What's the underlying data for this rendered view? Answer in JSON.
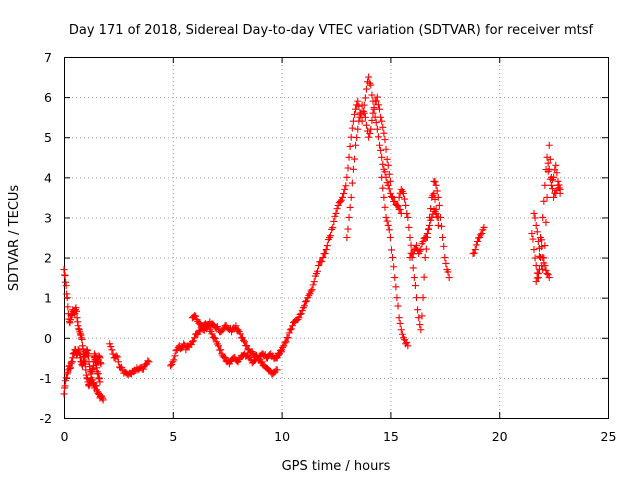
{
  "chart_data": {
    "type": "scatter",
    "title": "Day 171 of 2018, Sidereal Day-to-day VTEC variation (SDTVAR) for receiver mtsf",
    "xlabel": "GPS time / hours",
    "ylabel": "SDTVAR / TECUs",
    "xlim": [
      0,
      25
    ],
    "ylim": [
      -2,
      7
    ],
    "xticks": [
      "0",
      "5",
      "10",
      "15",
      "20",
      "25"
    ],
    "yticks": [
      "-2",
      "-1",
      "0",
      "1",
      "2",
      "3",
      "4",
      "5",
      "6",
      "7"
    ],
    "grid": true,
    "marker": "plus",
    "color": "#ff0000",
    "series": [
      {
        "name": "trace-1",
        "x": [
          0.0,
          0.05,
          0.1,
          0.15,
          0.2,
          0.25,
          0.3,
          0.35,
          0.4,
          0.45,
          0.5,
          0.55,
          0.6,
          0.65,
          0.7,
          0.75,
          0.8,
          0.85,
          0.9,
          0.95,
          1.0,
          1.05,
          1.1,
          1.15,
          1.2,
          1.25,
          1.3,
          1.35,
          1.4,
          1.45,
          1.5,
          1.55,
          1.6,
          1.65,
          1.7,
          1.75,
          1.8
        ],
        "y": [
          1.7,
          1.55,
          1.3,
          1.0,
          0.6,
          0.4,
          0.45,
          0.55,
          0.7,
          0.65,
          0.6,
          0.75,
          0.5,
          0.3,
          0.2,
          0.1,
          0.0,
          -0.2,
          -0.4,
          -0.6,
          -0.8,
          -1.0,
          -1.1,
          -1.2,
          -1.1,
          -1.0,
          -1.05,
          -1.15,
          -1.25,
          -1.2,
          -1.3,
          -1.35,
          -1.4,
          -1.5,
          -1.45,
          -1.5,
          -1.55
        ]
      },
      {
        "name": "trace-2",
        "x": [
          0.0,
          0.05,
          0.1,
          0.15,
          0.2,
          0.25,
          0.3,
          0.35,
          0.4,
          0.45,
          0.5,
          0.55,
          0.6,
          0.65,
          0.7,
          0.75,
          0.8,
          0.85,
          0.9,
          0.95,
          1.0,
          1.05,
          1.1,
          1.15,
          1.2,
          1.25,
          1.3,
          1.35,
          1.4,
          1.45,
          1.5,
          1.55,
          1.6,
          1.65
        ],
        "y": [
          -1.4,
          -1.2,
          -1.0,
          -0.9,
          -0.8,
          -0.7,
          -0.75,
          -0.6,
          -0.5,
          -0.4,
          -0.3,
          -0.35,
          -0.4,
          -0.3,
          -0.35,
          -0.5,
          -0.6,
          -0.7,
          -0.6,
          -0.5,
          -0.35,
          -0.3,
          -0.4,
          -0.6,
          -0.8,
          -0.9,
          -0.8,
          -0.7,
          -0.5,
          -0.6,
          -0.75,
          -0.9,
          -1.0,
          -1.1
        ]
      },
      {
        "name": "trace-3",
        "x": [
          1.4,
          1.45,
          1.5,
          1.55,
          1.6,
          1.65,
          1.7
        ],
        "y": [
          -0.4,
          -0.45,
          -0.55,
          -0.6,
          -0.45,
          -0.5,
          -0.65
        ]
      },
      {
        "name": "trace-4",
        "x": [
          2.1,
          2.2,
          2.3,
          2.4,
          2.5,
          2.6,
          2.7,
          2.8,
          2.9,
          3.0,
          3.1,
          3.2,
          3.3,
          3.4,
          3.5,
          3.6,
          3.7,
          3.8,
          3.9
        ],
        "y": [
          -0.15,
          -0.3,
          -0.5,
          -0.45,
          -0.6,
          -0.75,
          -0.8,
          -0.85,
          -0.9,
          -0.88,
          -0.9,
          -0.85,
          -0.82,
          -0.8,
          -0.75,
          -0.78,
          -0.7,
          -0.65,
          -0.6
        ]
      },
      {
        "name": "trace-5",
        "x": [
          4.9,
          5.0,
          5.1,
          5.2,
          5.3,
          5.4,
          5.5,
          5.6,
          5.7,
          5.8,
          5.9,
          6.0,
          6.1,
          6.2,
          6.3,
          6.4,
          6.5,
          6.6,
          6.7,
          6.8,
          6.9,
          7.0,
          7.1,
          7.2,
          7.3,
          7.4,
          7.5,
          7.6,
          7.7,
          7.8,
          7.9,
          8.0,
          8.1,
          8.2,
          8.3,
          8.4,
          8.5,
          8.6,
          8.7,
          8.8,
          8.9,
          9.0,
          9.1,
          9.2,
          9.3,
          9.4,
          9.5,
          9.6,
          9.7,
          9.8
        ],
        "y": [
          -0.7,
          -0.6,
          -0.45,
          -0.3,
          -0.2,
          -0.25,
          -0.15,
          -0.3,
          -0.2,
          -0.15,
          -0.1,
          0.0,
          0.1,
          0.15,
          0.25,
          0.3,
          0.35,
          0.3,
          0.2,
          0.1,
          0.0,
          -0.1,
          -0.2,
          -0.3,
          -0.45,
          -0.5,
          -0.6,
          -0.65,
          -0.55,
          -0.5,
          -0.55,
          -0.6,
          -0.5,
          -0.45,
          -0.4,
          -0.45,
          -0.5,
          -0.55,
          -0.6,
          -0.55,
          -0.5,
          -0.55,
          -0.6,
          -0.7,
          -0.75,
          -0.8,
          -0.85,
          -0.9,
          -0.85,
          -0.8
        ]
      },
      {
        "name": "trace-6",
        "x": [
          5.9,
          6.0,
          6.1,
          6.2,
          6.3,
          6.4,
          6.5,
          6.6,
          6.7,
          6.8,
          6.9,
          7.0,
          7.1,
          7.2,
          7.3,
          7.4,
          7.5,
          7.6,
          7.7,
          7.8,
          7.9,
          8.0,
          8.1,
          8.2,
          8.3,
          8.4,
          8.5,
          8.6,
          8.7,
          8.8,
          8.9,
          9.0,
          9.1,
          9.2,
          9.3,
          9.4,
          9.5,
          9.6,
          9.7,
          9.8,
          9.9,
          10.0
        ],
        "y": [
          0.5,
          0.55,
          0.45,
          0.35,
          0.3,
          0.2,
          0.25,
          0.3,
          0.4,
          0.35,
          0.3,
          0.25,
          0.2,
          0.15,
          0.2,
          0.3,
          0.25,
          0.2,
          0.15,
          0.25,
          0.3,
          0.2,
          0.1,
          0.0,
          -0.1,
          -0.2,
          -0.3,
          -0.35,
          -0.4,
          -0.45,
          -0.5,
          -0.45,
          -0.4,
          -0.45,
          -0.5,
          -0.45,
          -0.4,
          -0.45,
          -0.5,
          -0.45,
          -0.4,
          -0.35
        ]
      },
      {
        "name": "trace-7",
        "x": [
          9.8,
          9.9,
          10.0,
          10.1,
          10.2,
          10.3,
          10.4,
          10.5,
          10.6,
          10.7,
          10.8,
          10.9,
          11.0,
          11.1,
          11.2,
          11.3,
          11.4,
          11.5,
          11.6,
          11.7,
          11.8,
          11.9,
          12.0,
          12.1,
          12.2,
          12.3,
          12.4,
          12.5,
          12.6,
          12.7,
          12.8,
          12.9,
          13.0,
          13.1,
          13.2,
          13.3,
          13.4,
          13.5,
          13.6,
          13.7,
          13.8,
          13.9,
          14.0,
          14.1,
          14.2,
          14.3,
          14.4,
          14.5,
          14.6,
          14.7,
          14.8,
          14.9,
          15.0,
          15.1,
          15.2,
          15.3,
          15.4,
          15.5
        ],
        "y": [
          -0.5,
          -0.4,
          -0.3,
          -0.2,
          -0.1,
          0.0,
          0.2,
          0.3,
          0.4,
          0.45,
          0.5,
          0.6,
          0.75,
          0.9,
          1.0,
          1.1,
          1.2,
          1.4,
          1.6,
          1.8,
          1.9,
          2.0,
          2.1,
          2.3,
          2.5,
          2.7,
          2.9,
          3.1,
          3.3,
          3.4,
          3.5,
          3.7,
          4.0,
          4.5,
          5.0,
          5.4,
          5.7,
          5.9,
          5.6,
          5.4,
          5.8,
          6.2,
          6.5,
          6.3,
          5.9,
          5.5,
          5.2,
          4.8,
          4.5,
          4.2,
          4.0,
          3.8,
          3.6,
          3.5,
          3.4,
          3.3,
          3.2,
          3.1
        ]
      },
      {
        "name": "trace-8",
        "x": [
          13.0,
          13.1,
          13.2,
          13.3,
          13.4,
          13.5,
          13.6,
          13.7,
          13.8,
          13.9,
          14.0,
          14.1,
          14.2,
          14.3,
          14.4,
          14.5,
          14.6,
          14.7,
          14.8,
          14.9,
          15.0
        ],
        "y": [
          2.5,
          3.0,
          3.5,
          4.2,
          4.8,
          5.2,
          5.5,
          5.8,
          5.6,
          5.3,
          5.0,
          5.2,
          5.6,
          5.9,
          6.0,
          5.7,
          5.4,
          5.1,
          4.7,
          4.3,
          3.9
        ]
      },
      {
        "name": "trace-9",
        "x": [
          14.6,
          14.7,
          14.8,
          14.9,
          15.0,
          15.1,
          15.2,
          15.3,
          15.4,
          15.5,
          15.6,
          15.7,
          15.8
        ],
        "y": [
          4.0,
          3.5,
          3.0,
          2.8,
          2.5,
          2.0,
          1.5,
          1.0,
          0.5,
          0.2,
          0.0,
          -0.15,
          -0.2
        ]
      },
      {
        "name": "trace-10",
        "x": [
          15.4,
          15.5,
          15.6,
          15.7,
          15.8,
          15.9,
          16.0,
          16.1,
          16.2,
          16.3,
          16.4,
          16.5,
          16.6,
          16.7,
          16.8,
          16.9,
          17.0,
          17.1,
          17.2
        ],
        "y": [
          3.5,
          3.7,
          3.6,
          3.3,
          3.0,
          2.5,
          2.0,
          1.5,
          1.0,
          0.5,
          0.2,
          1.0,
          2.0,
          2.5,
          3.0,
          3.5,
          3.6,
          3.2,
          2.8
        ]
      },
      {
        "name": "trace-11",
        "x": [
          15.9,
          16.0,
          16.1,
          16.2,
          16.3,
          16.4,
          16.5,
          16.6,
          16.7,
          16.8,
          16.9,
          17.0,
          17.1,
          17.2
        ],
        "y": [
          2.0,
          2.1,
          2.2,
          2.3,
          2.1,
          2.2,
          2.4,
          2.5,
          2.6,
          2.8,
          3.0,
          3.2,
          3.1,
          3.0
        ]
      },
      {
        "name": "trace-12",
        "x": [
          17.0,
          17.1,
          17.2,
          17.3,
          17.4,
          17.5,
          17.6,
          17.7
        ],
        "y": [
          3.9,
          3.8,
          3.5,
          3.0,
          2.5,
          2.0,
          1.7,
          1.5
        ]
      },
      {
        "name": "trace-13",
        "x": [
          18.8,
          18.9,
          19.0,
          19.1,
          19.2,
          19.3
        ],
        "y": [
          2.1,
          2.2,
          2.4,
          2.5,
          2.6,
          2.75
        ]
      },
      {
        "name": "trace-14",
        "x": [
          21.5,
          21.6,
          21.7,
          21.8,
          21.9,
          22.0,
          22.1,
          22.2,
          22.3,
          22.4,
          22.5,
          22.6,
          22.7,
          22.8
        ],
        "y": [
          2.6,
          2.2,
          1.8,
          1.5,
          2.0,
          3.0,
          3.8,
          4.5,
          4.2,
          3.8,
          4.0,
          4.3,
          3.9,
          3.7
        ]
      },
      {
        "name": "trace-15",
        "x": [
          21.6,
          21.7,
          21.8,
          21.9,
          22.0,
          22.1,
          22.2,
          22.3,
          22.4,
          22.5,
          22.6,
          22.7,
          22.8
        ],
        "y": [
          3.1,
          2.8,
          2.4,
          2.0,
          1.7,
          2.3,
          3.5,
          4.8,
          4.0,
          3.5,
          3.6,
          3.8,
          3.6
        ]
      },
      {
        "name": "trace-16",
        "x": [
          21.7,
          21.8,
          21.9,
          22.0,
          22.1,
          22.2,
          22.3
        ],
        "y": [
          1.4,
          1.6,
          2.5,
          2.0,
          1.8,
          1.6,
          1.5
        ]
      }
    ]
  }
}
